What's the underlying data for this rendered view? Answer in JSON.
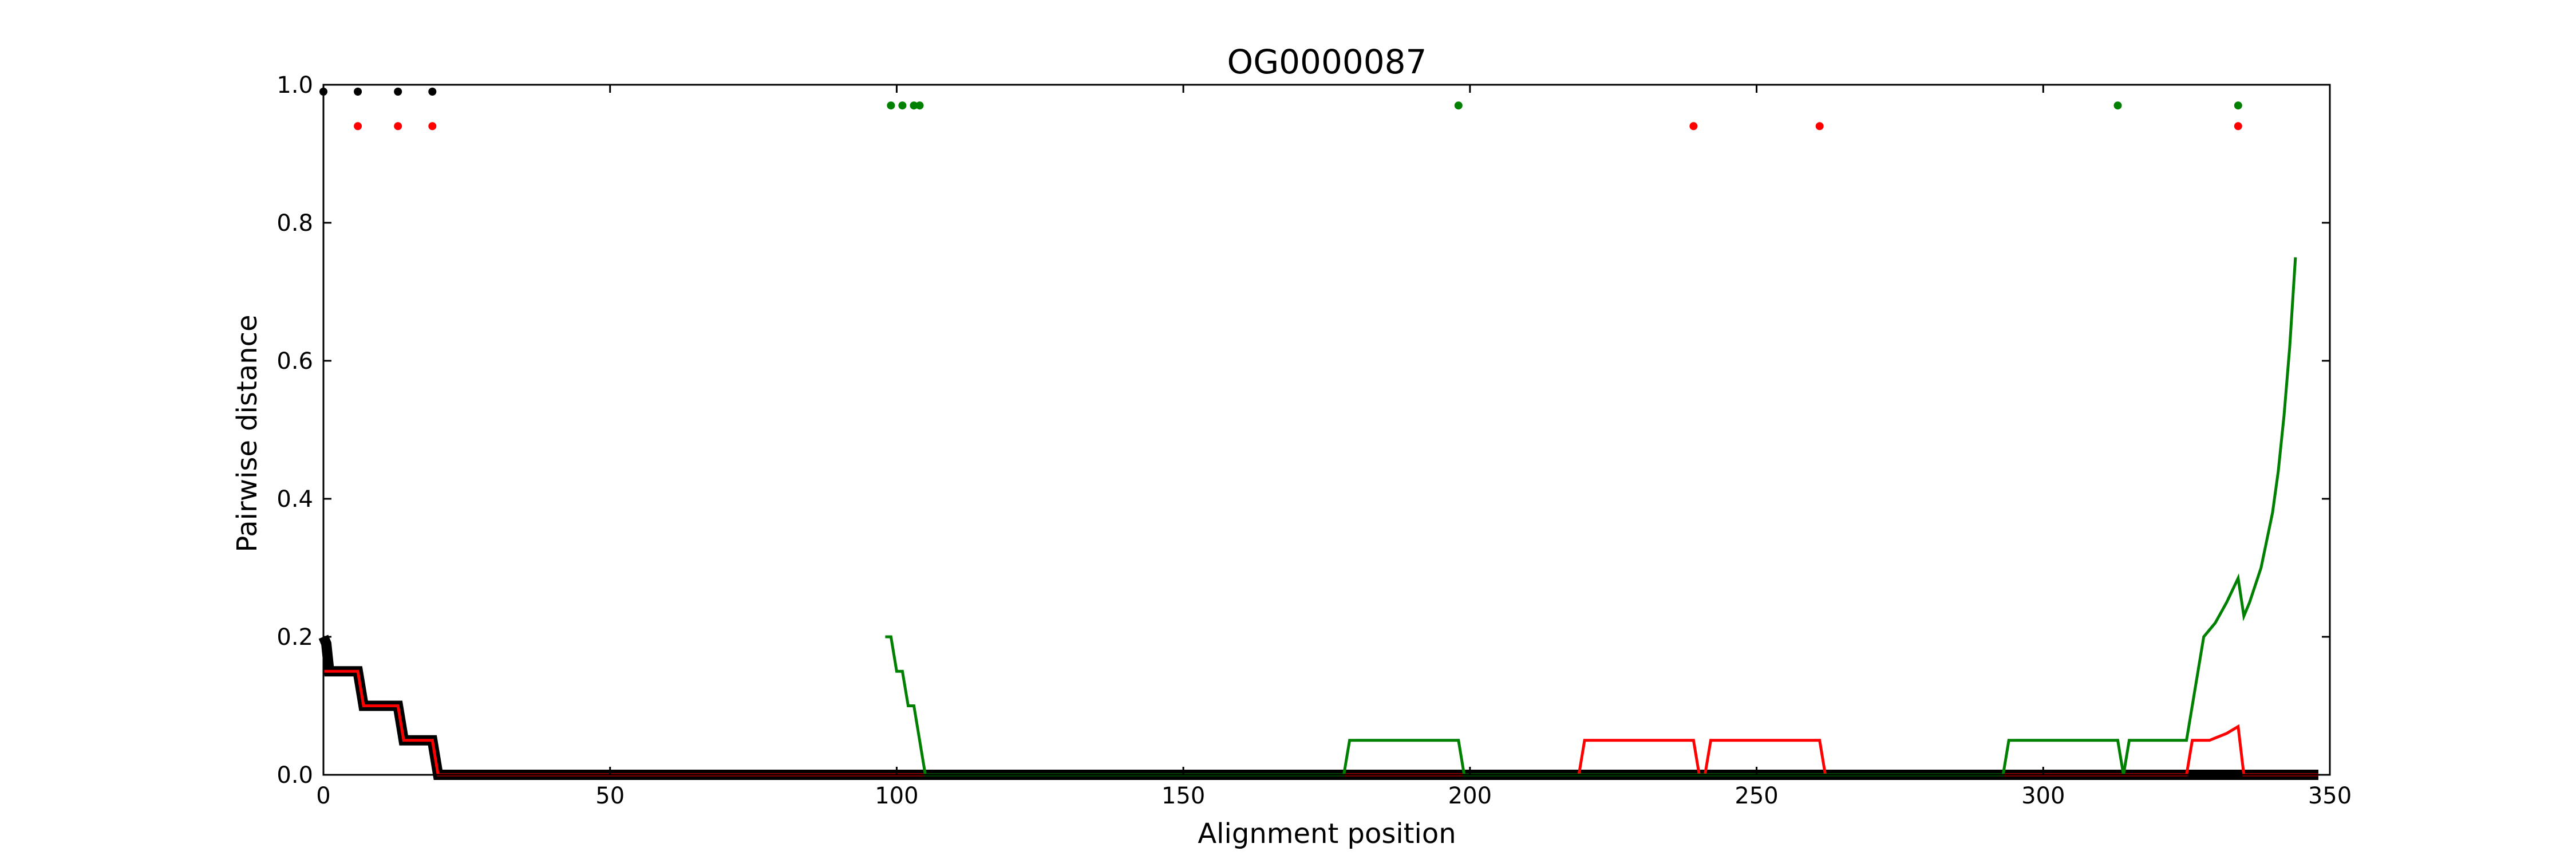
{
  "chart_data": {
    "type": "line",
    "title": "OG0000087",
    "xlabel": "Alignment position",
    "ylabel": "Pairwise distance",
    "xlim": [
      0,
      350
    ],
    "ylim": [
      0,
      1.0
    ],
    "xticks": [
      0,
      50,
      100,
      150,
      200,
      250,
      300,
      350
    ],
    "yticks": [
      0.0,
      0.2,
      0.4,
      0.6,
      0.8,
      1.0
    ],
    "xtick_labels": [
      "0",
      "50",
      "100",
      "150",
      "200",
      "250",
      "300",
      "350"
    ],
    "ytick_labels": [
      "0.0",
      "0.2",
      "0.4",
      "0.6",
      "0.8",
      "1.0"
    ],
    "grid": false,
    "series": [
      {
        "color": "#000000",
        "style": "thick-line",
        "points": [
          [
            0,
            0.2
          ],
          [
            0.5,
            0.19
          ],
          [
            1,
            0.15
          ],
          [
            6,
            0.15
          ],
          [
            7,
            0.1
          ],
          [
            13,
            0.1
          ],
          [
            14,
            0.05
          ],
          [
            19,
            0.05
          ],
          [
            20,
            0.0
          ],
          [
            348,
            0.0
          ]
        ]
      },
      {
        "color": "#ff0000",
        "style": "line",
        "points": [
          [
            0,
            0.15
          ],
          [
            6,
            0.15
          ],
          [
            7,
            0.1
          ],
          [
            13,
            0.1
          ],
          [
            14,
            0.05
          ],
          [
            19,
            0.05
          ],
          [
            20,
            0.0
          ],
          [
            219,
            0.0
          ],
          [
            220,
            0.05
          ],
          [
            239,
            0.05
          ],
          [
            240,
            0.0
          ],
          [
            241,
            0.0
          ],
          [
            242,
            0.05
          ],
          [
            261,
            0.05
          ],
          [
            262,
            0.0
          ],
          [
            325,
            0.0
          ],
          [
            326,
            0.05
          ],
          [
            329,
            0.05
          ],
          [
            332,
            0.06
          ],
          [
            334,
            0.07
          ],
          [
            335,
            0.0
          ],
          [
            348,
            0.0
          ]
        ]
      },
      {
        "color": "#008000",
        "style": "line",
        "points": [
          [
            98,
            0.2
          ],
          [
            99,
            0.2
          ],
          [
            100,
            0.15
          ],
          [
            101,
            0.15
          ],
          [
            102,
            0.1
          ],
          [
            103,
            0.1
          ],
          [
            105,
            0.0
          ],
          [
            178,
            0.0
          ],
          [
            179,
            0.05
          ],
          [
            198,
            0.05
          ],
          [
            199,
            0.0
          ],
          [
            293,
            0.0
          ],
          [
            294,
            0.05
          ],
          [
            313,
            0.05
          ],
          [
            314,
            0.0
          ],
          [
            315,
            0.05
          ],
          [
            325,
            0.05
          ],
          [
            328,
            0.2
          ],
          [
            330,
            0.22
          ],
          [
            332,
            0.25
          ],
          [
            334,
            0.285
          ],
          [
            335,
            0.23
          ],
          [
            336,
            0.25
          ],
          [
            338,
            0.3
          ],
          [
            340,
            0.38
          ],
          [
            341,
            0.44
          ],
          [
            342,
            0.52
          ],
          [
            343,
            0.62
          ],
          [
            344,
            0.75
          ]
        ]
      }
    ],
    "markers": [
      {
        "color": "#000000",
        "x": [
          0,
          6,
          13,
          19
        ],
        "y": [
          0.99,
          0.99,
          0.99,
          0.99
        ]
      },
      {
        "color": "#ff0000",
        "x": [
          6,
          13,
          19,
          239,
          261,
          334
        ],
        "y": [
          0.94,
          0.94,
          0.94,
          0.94,
          0.94,
          0.94
        ]
      },
      {
        "color": "#008000",
        "x": [
          99,
          101,
          103,
          104,
          198,
          313,
          334
        ],
        "y": [
          0.97,
          0.97,
          0.97,
          0.97,
          0.97,
          0.97,
          0.97
        ]
      }
    ]
  }
}
